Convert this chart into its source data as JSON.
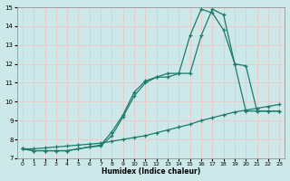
{
  "xlabel": "Humidex (Indice chaleur)",
  "xlim": [
    -0.5,
    23.5
  ],
  "ylim": [
    7,
    15
  ],
  "xticks": [
    0,
    1,
    2,
    3,
    4,
    5,
    6,
    7,
    8,
    9,
    10,
    11,
    12,
    13,
    14,
    15,
    16,
    17,
    18,
    19,
    20,
    21,
    22,
    23
  ],
  "yticks": [
    7,
    8,
    9,
    10,
    11,
    12,
    13,
    14,
    15
  ],
  "bg_color": "#cce8e8",
  "line_color": "#1e7b6b",
  "grid_color": "#e8c8c8",
  "line1_y": [
    7.5,
    7.4,
    7.4,
    7.4,
    7.4,
    7.5,
    7.6,
    7.7,
    8.4,
    9.3,
    10.5,
    11.1,
    11.3,
    11.5,
    11.5,
    11.5,
    13.5,
    14.9,
    14.6,
    12.0,
    11.9,
    9.5,
    9.5,
    9.5
  ],
  "line2_y": [
    7.5,
    7.4,
    7.4,
    7.4,
    7.4,
    7.5,
    7.6,
    7.65,
    8.2,
    9.2,
    10.3,
    11.0,
    11.3,
    11.3,
    11.5,
    13.5,
    14.9,
    14.7,
    13.8,
    12.0,
    9.5,
    9.5,
    9.5,
    9.5
  ],
  "line3_y": [
    7.5,
    7.5,
    7.55,
    7.6,
    7.65,
    7.7,
    7.75,
    7.8,
    7.9,
    8.0,
    8.1,
    8.2,
    8.35,
    8.5,
    8.65,
    8.8,
    9.0,
    9.15,
    9.3,
    9.45,
    9.55,
    9.65,
    9.75,
    9.85
  ]
}
